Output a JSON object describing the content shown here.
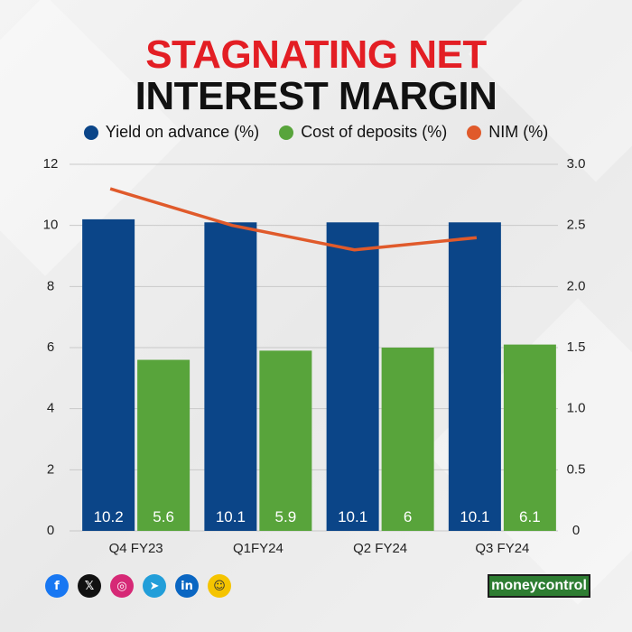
{
  "title_line1": "STAGNATING NET",
  "title_line2": "INTEREST MARGIN",
  "brand": "moneycontrol",
  "colors": {
    "yield": "#0b4588",
    "cost": "#58a43b",
    "nim": "#e05a2b",
    "title_accent": "#e31e24"
  },
  "social_icons": [
    "facebook-icon",
    "x-icon",
    "instagram-icon",
    "telegram-icon",
    "linkedin-icon",
    "snapchat-icon"
  ],
  "chart_data": {
    "type": "bar",
    "title": "STAGNATING NET INTEREST MARGIN",
    "categories": [
      "Q4 FY23",
      "Q1FY24",
      "Q2 FY24",
      "Q3 FY24"
    ],
    "series": [
      {
        "name": "Yield on advance (%)",
        "type": "bar",
        "axis": "left",
        "values": [
          10.2,
          10.1,
          10.1,
          10.1
        ],
        "labels": [
          "10.2",
          "10.1",
          "10.1",
          "10.1"
        ]
      },
      {
        "name": "Cost of deposits (%)",
        "type": "bar",
        "axis": "left",
        "values": [
          5.6,
          5.9,
          6,
          6.1
        ],
        "labels": [
          "5.6",
          "5.9",
          "6",
          "6.1"
        ]
      },
      {
        "name": "NIM (%)",
        "type": "line",
        "axis": "right",
        "values": [
          2.8,
          2.5,
          2.3,
          2.4
        ]
      }
    ],
    "ylim_left": [
      0,
      12
    ],
    "ylim_right": [
      0,
      3
    ],
    "yticks_left": [
      "0",
      "2",
      "4",
      "6",
      "8",
      "10",
      "12"
    ],
    "yticks_right": [
      "0",
      "0.5",
      "1.0",
      "1.5",
      "2.0",
      "2.5",
      "3.0"
    ],
    "grid": true,
    "legend_position": "top"
  }
}
